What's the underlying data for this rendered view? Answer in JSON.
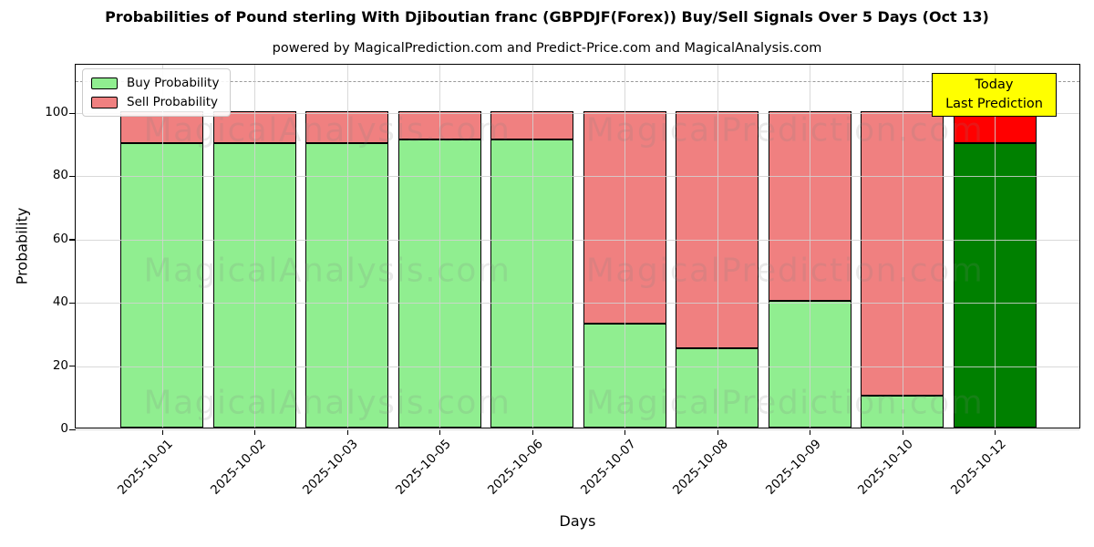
{
  "chart_data": {
    "type": "bar",
    "stacked": true,
    "title": "Probabilities of Pound sterling With Djiboutian franc (GBPDJF(Forex)) Buy/Sell Signals Over 5 Days (Oct 13)",
    "subtitle": "powered by MagicalPrediction.com and Predict-Price.com and MagicalAnalysis.com",
    "xlabel": "Days",
    "ylabel": "Probability",
    "categories": [
      "2025-10-01",
      "2025-10-02",
      "2025-10-03",
      "2025-10-05",
      "2025-10-06",
      "2025-10-07",
      "2025-10-08",
      "2025-10-09",
      "2025-10-10",
      "2025-10-12"
    ],
    "series": [
      {
        "name": "Buy Probability",
        "color": "#90EE90",
        "values": [
          90,
          90,
          90,
          91,
          91,
          33,
          25,
          40,
          10,
          90
        ]
      },
      {
        "name": "Sell Probability",
        "color": "#F08080",
        "values": [
          10,
          10,
          10,
          9,
          9,
          67,
          75,
          60,
          90,
          10
        ]
      }
    ],
    "today_index": 9,
    "today_colors": {
      "buy": "#008000",
      "sell": "#FF0000"
    },
    "yticks": [
      0,
      20,
      40,
      60,
      80,
      100
    ],
    "ylim": [
      0,
      115.3
    ],
    "dashed_line_y": 110,
    "grid": true,
    "legend_position": "upper left"
  },
  "annotation": {
    "lines": [
      "Today",
      "Last Prediction"
    ],
    "bg_color": "#FFFF00"
  },
  "watermarks": {
    "left": "MagicalAnalysis.com",
    "right": "MagicalPrediction.com"
  }
}
